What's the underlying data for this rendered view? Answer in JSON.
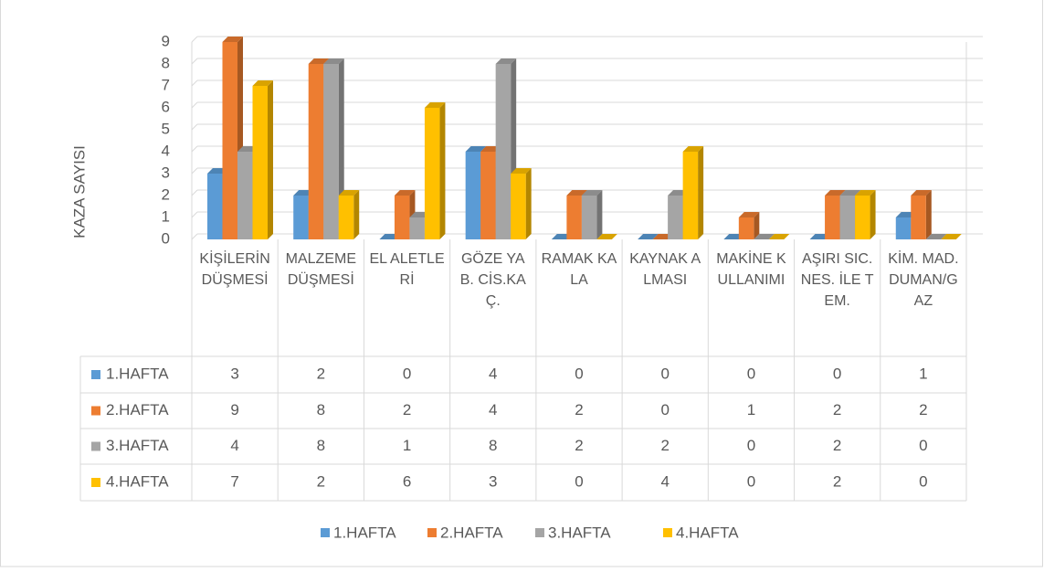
{
  "chart_data": {
    "type": "bar",
    "y_label": "KAZA SAYISI",
    "categories": [
      "KİŞİLERİN DÜŞMESİ",
      "MALZEME DÜŞMESİ",
      "EL ALETLERİ",
      "GÖZE YAB. CİS.KAÇ.",
      "RAMAK KALA",
      "KAYNAK ALMASI",
      "MAKİNE KULLANIMI",
      "AŞIRI SIC. NES. İLE TEM.",
      "KİM. MAD. DUMAN/GAZ"
    ],
    "series": [
      {
        "name": "1.HAFTA",
        "color": "#5b9bd5",
        "values": [
          3,
          2,
          0,
          4,
          0,
          0,
          0,
          0,
          1
        ]
      },
      {
        "name": "2.HAFTA",
        "color": "#ed7d31",
        "values": [
          9,
          8,
          2,
          4,
          2,
          0,
          1,
          2,
          2
        ]
      },
      {
        "name": "3.HAFTA",
        "color": "#a5a5a5",
        "values": [
          4,
          8,
          1,
          8,
          2,
          2,
          0,
          2,
          0
        ]
      },
      {
        "name": "4.HAFTA",
        "color": "#ffc000",
        "values": [
          7,
          2,
          6,
          3,
          0,
          4,
          0,
          2,
          0
        ]
      }
    ],
    "ylim": [
      0,
      9
    ],
    "yticks": [
      0,
      1,
      2,
      3,
      4,
      5,
      6,
      7,
      8,
      9
    ],
    "grid": true
  }
}
